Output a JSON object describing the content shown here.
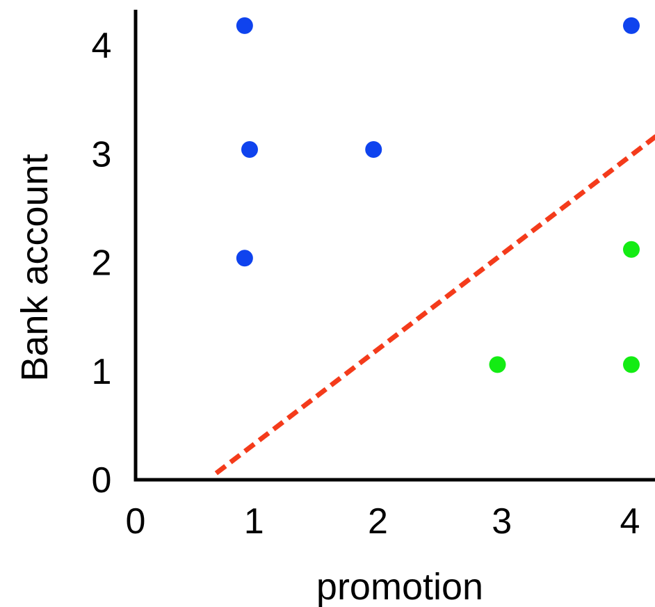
{
  "chart_data": {
    "type": "scatter",
    "title": "",
    "xlabel": "promotion",
    "ylabel": "Bank account",
    "xlim": [
      0,
      4
    ],
    "ylim": [
      0,
      4
    ],
    "x_ticks": [
      "0",
      "1",
      "2",
      "3",
      "4"
    ],
    "y_ticks": [
      "0",
      "1",
      "2",
      "3",
      "4"
    ],
    "grid": false,
    "legend": "none",
    "series": [
      {
        "color": "#0f43ee",
        "points": [
          {
            "x": 0.88,
            "y": 4.18
          },
          {
            "x": 4.0,
            "y": 4.18
          },
          {
            "x": 0.92,
            "y": 3.04
          },
          {
            "x": 1.92,
            "y": 3.04
          },
          {
            "x": 0.88,
            "y": 2.04
          }
        ]
      },
      {
        "color": "#13ec13",
        "points": [
          {
            "x": 4.0,
            "y": 2.12
          },
          {
            "x": 2.92,
            "y": 1.06
          },
          {
            "x": 4.0,
            "y": 1.06
          }
        ]
      }
    ],
    "decision_line": {
      "color": "#f43b1b",
      "style": "dashed",
      "from": {
        "x": 0.65,
        "y": 0.06
      },
      "to": {
        "x": 4.3,
        "y": 3.25
      }
    },
    "axis_color": "#000000"
  }
}
